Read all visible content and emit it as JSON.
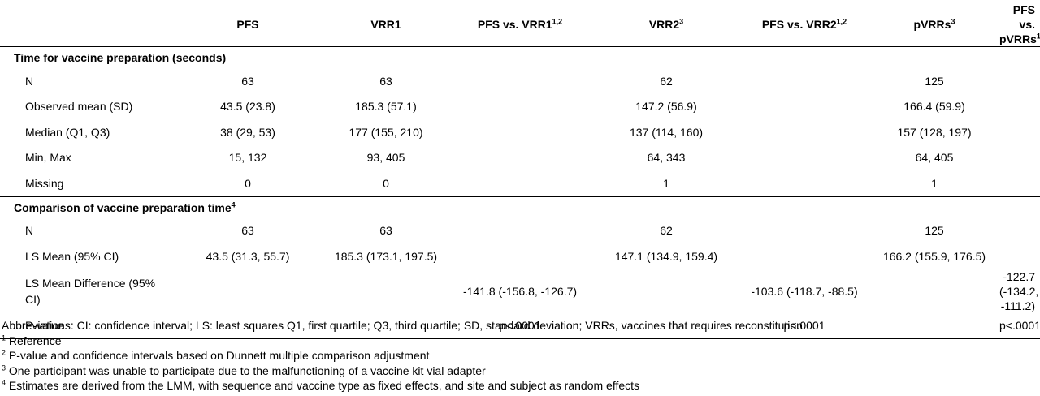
{
  "header": {
    "label": "",
    "cols": [
      {
        "text": "PFS",
        "sup": ""
      },
      {
        "text": "VRR1",
        "sup": ""
      },
      {
        "text": "PFS vs. VRR1",
        "sup": "1,2"
      },
      {
        "text": "VRR2",
        "sup": "3"
      },
      {
        "text": "PFS vs. VRR2",
        "sup": "1,2"
      },
      {
        "text": "pVRRs",
        "sup": "3"
      },
      {
        "text": "PFS vs. pVRRs",
        "sup": "1"
      }
    ]
  },
  "sections": [
    {
      "title": "Time for vaccine preparation (seconds)",
      "sup": "",
      "rows": [
        {
          "label": "N",
          "cells": [
            "63",
            "63",
            "",
            "62",
            "",
            "125",
            ""
          ]
        },
        {
          "label": "Observed mean (SD)",
          "cells": [
            "43.5 (23.8)",
            "185.3 (57.1)",
            "",
            "147.2 (56.9)",
            "",
            "166.4 (59.9)",
            ""
          ]
        },
        {
          "label": "Median (Q1, Q3)",
          "cells": [
            "38 (29, 53)",
            "177 (155, 210)",
            "",
            "137 (114, 160)",
            "",
            "157 (128, 197)",
            ""
          ]
        },
        {
          "label": "Min, Max",
          "cells": [
            "15, 132",
            "93, 405",
            "",
            "64, 343",
            "",
            "64, 405",
            ""
          ]
        },
        {
          "label": "Missing",
          "cells": [
            "0",
            "0",
            "",
            "1",
            "",
            "1",
            ""
          ]
        }
      ]
    },
    {
      "title": "Comparison of vaccine preparation time",
      "sup": "4",
      "rows": [
        {
          "label": "N",
          "cells": [
            "63",
            "63",
            "",
            "62",
            "",
            "125",
            ""
          ]
        },
        {
          "label": "LS Mean (95% CI)",
          "cells": [
            "43.5 (31.3, 55.7)",
            "185.3 (173.1, 197.5)",
            "",
            "147.1 (134.9, 159.4)",
            "",
            "166.2 (155.9, 176.5)",
            ""
          ]
        },
        {
          "label": "LS Mean Difference (95% CI)",
          "cells": [
            "",
            "",
            "-141.8 (-156.8, -126.7)",
            "",
            "-103.6 (-118.7, -88.5)",
            "",
            "-122.7 (-134.2, -111.2)"
          ]
        },
        {
          "label": "P-value",
          "cells": [
            "",
            "",
            "p<.0001",
            "",
            "p<.0001",
            "",
            "p<.0001"
          ]
        }
      ]
    }
  ],
  "footnotes": [
    {
      "sup": "",
      "text": "Abbreviations: CI: confidence interval; LS: least squares Q1, first quartile; Q3, third quartile; SD, standard deviation; VRRs, vaccines that requires reconstitution"
    },
    {
      "sup": "1",
      "text": " Reference"
    },
    {
      "sup": "2",
      "text": " P-value and confidence intervals based on Dunnett multiple comparison adjustment"
    },
    {
      "sup": "3",
      "text": " One participant was unable to participate due to the malfunctioning of a vaccine kit vial adapter"
    },
    {
      "sup": "4",
      "text": " Estimates are derived from the LMM, with sequence and vaccine type as fixed effects, and site and subject as random effects"
    }
  ]
}
